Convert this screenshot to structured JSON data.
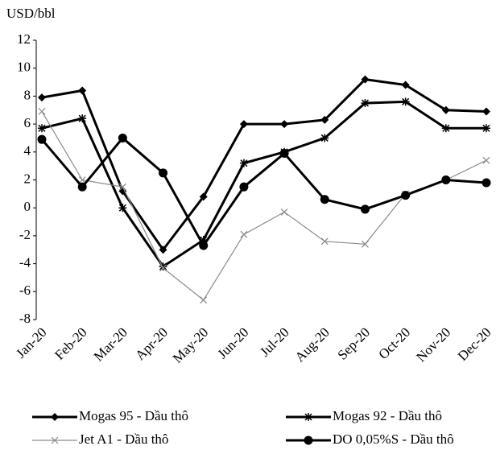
{
  "chart_data": {
    "type": "line",
    "y_label": "USD/bbl",
    "categories": [
      "Jan-20",
      "Feb-20",
      "Mar-20",
      "Apr-20",
      "May-20",
      "Jun-20",
      "Jul-20",
      "Aug-20",
      "Sep-20",
      "Oct-20",
      "Nov-20",
      "Dec-20"
    ],
    "series": [
      {
        "name": "Mogas 95 - Dầu thô",
        "color": "#000000",
        "marker": "diamond",
        "values": [
          7.9,
          8.4,
          1.2,
          -3.0,
          0.8,
          6.0,
          6.0,
          6.3,
          9.2,
          8.8,
          7.0,
          6.9
        ]
      },
      {
        "name": "Mogas 92 - Dầu thô",
        "color": "#000000",
        "marker": "star",
        "values": [
          5.7,
          6.4,
          0.0,
          -4.2,
          -2.3,
          3.2,
          4.0,
          5.0,
          7.5,
          7.6,
          5.7,
          5.7
        ]
      },
      {
        "name": "Jet A1 - Dầu thô",
        "color": "#8a8a8a",
        "marker": "cross",
        "values": [
          6.9,
          2.0,
          1.5,
          -4.3,
          -6.6,
          -1.9,
          -0.3,
          -2.4,
          -2.6,
          1.0,
          2.0,
          3.4
        ]
      },
      {
        "name": "DO 0,05%S - Dầu thô",
        "color": "#000000",
        "marker": "circle",
        "values": [
          4.9,
          1.5,
          5.0,
          2.5,
          -2.7,
          1.5,
          3.9,
          0.6,
          -0.1,
          0.9,
          2.0,
          1.8
        ]
      }
    ],
    "ylim": [
      -8,
      12
    ],
    "yticks": [
      -8,
      -6,
      -4,
      -2,
      0,
      2,
      4,
      6,
      8,
      10,
      12
    ]
  }
}
